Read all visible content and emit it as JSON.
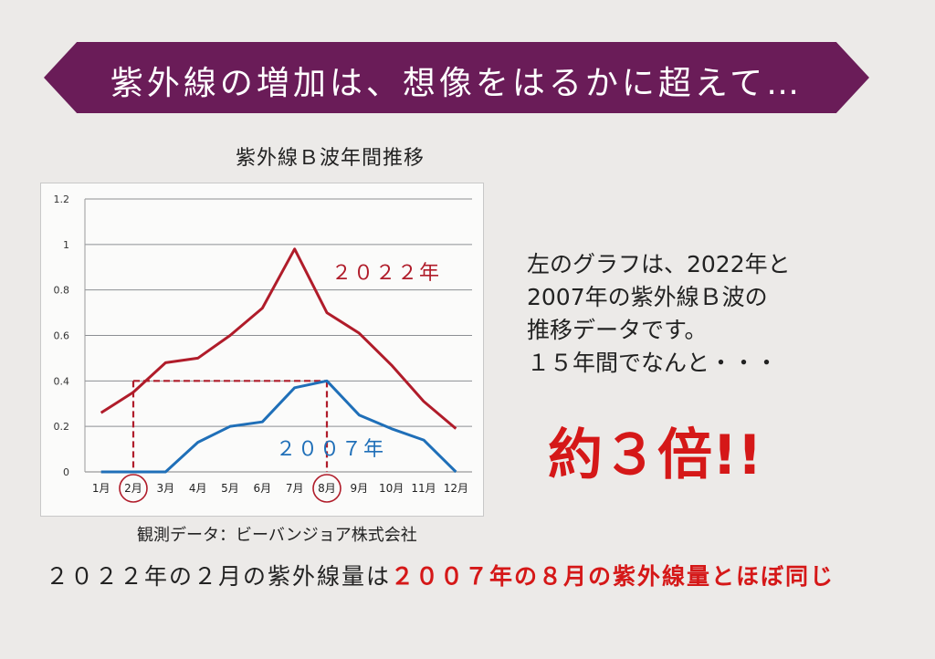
{
  "banner": {
    "text": "紫外線の増加は、想像をはるかに超えて…"
  },
  "chart_data": {
    "type": "line",
    "title": "紫外線Ｂ波年間推移",
    "categories": [
      "1月",
      "2月",
      "3月",
      "4月",
      "5月",
      "6月",
      "7月",
      "8月",
      "9月",
      "10月",
      "11月",
      "12月"
    ],
    "ylim": [
      0,
      1.2
    ],
    "yticks": [
      "0",
      "0.2",
      "0.4",
      "0.6",
      "0.8",
      "1",
      "1.2"
    ],
    "grid": true,
    "series": [
      {
        "name": "２０２２年",
        "color": "#b01c2a",
        "values": [
          0.26,
          0.35,
          0.48,
          0.5,
          0.6,
          0.72,
          0.98,
          0.7,
          0.61,
          0.47,
          0.31,
          0.19
        ]
      },
      {
        "name": "２００７年",
        "color": "#1f6fb8",
        "values": [
          0,
          0,
          0,
          0.13,
          0.2,
          0.22,
          0.37,
          0.4,
          0.25,
          0.19,
          0.14,
          0
        ]
      }
    ],
    "highlight": {
      "categories": [
        "2月",
        "8月"
      ],
      "value": 0.4,
      "color": "#b01c2a"
    }
  },
  "source": "観測データ：ビーバンジョア株式会社",
  "explanation": {
    "lines": [
      "左のグラフは、2022年と",
      "2007年の紫外線Ｂ波の",
      "推移データです。",
      "１５年間でなんと・・・"
    ]
  },
  "emphasis": "約３倍!!",
  "bottom": {
    "part1": "２０２２年の２月の紫外線量は",
    "part2": "２００７年の８月の紫外線量とほぼ同じ"
  }
}
